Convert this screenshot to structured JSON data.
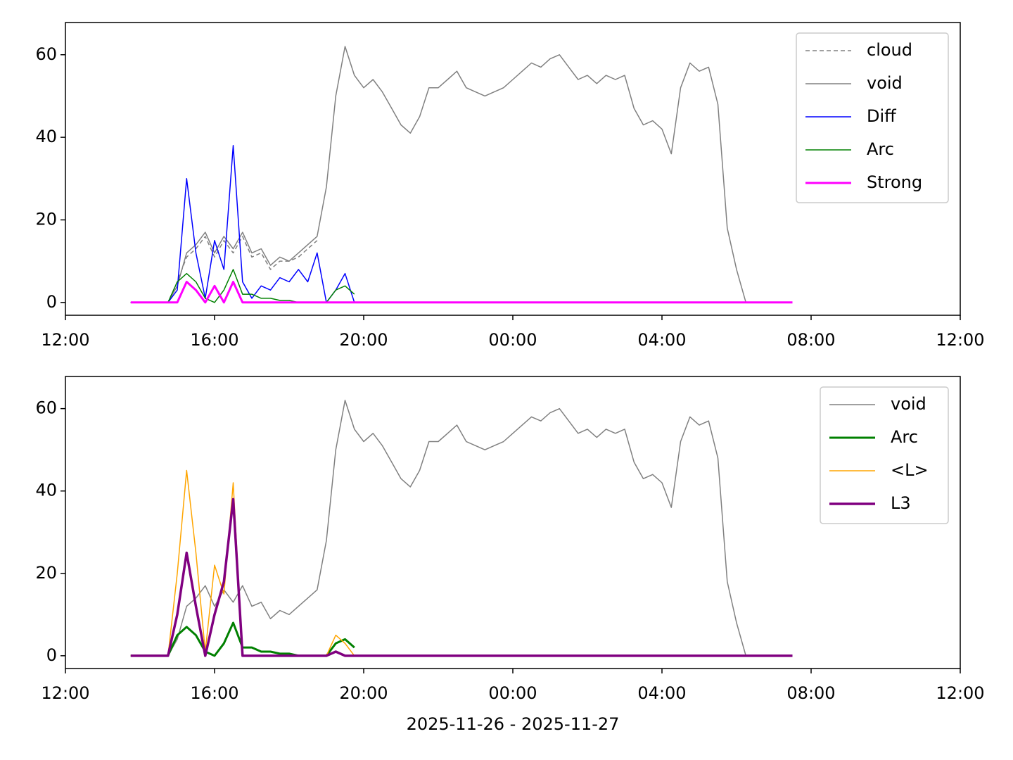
{
  "chart_data": [
    {
      "type": "line",
      "legend": "upper right",
      "xlim": [
        12,
        36
      ],
      "ylim": [
        -3.1,
        67.8
      ],
      "xticks": [
        {
          "value": 12,
          "label": "12:00"
        },
        {
          "value": 16,
          "label": "16:00"
        },
        {
          "value": 20,
          "label": "20:00"
        },
        {
          "value": 24,
          "label": "00:00"
        },
        {
          "value": 28,
          "label": "04:00"
        },
        {
          "value": 32,
          "label": "08:00"
        },
        {
          "value": 36,
          "label": "12:00"
        }
      ],
      "yticks": [
        0,
        20,
        40,
        60
      ],
      "x": [
        13.75,
        14,
        14.25,
        14.5,
        14.75,
        15,
        15.25,
        15.5,
        15.75,
        16,
        16.25,
        16.5,
        16.75,
        17,
        17.25,
        17.5,
        17.75,
        18,
        18.25,
        18.5,
        18.75,
        19,
        19.25,
        19.5,
        19.75,
        20,
        20.25,
        20.5,
        20.75,
        21,
        21.25,
        21.5,
        21.75,
        22,
        22.25,
        22.5,
        22.75,
        23,
        23.25,
        23.5,
        23.75,
        24,
        24.25,
        24.5,
        24.75,
        25,
        25.25,
        25.5,
        25.75,
        26,
        26.25,
        26.5,
        26.75,
        27,
        27.25,
        27.5,
        27.75,
        28,
        28.25,
        28.5,
        28.75,
        29,
        29.25,
        29.5,
        29.75,
        30,
        30.25,
        30.5,
        30.75,
        31,
        31.25,
        31.5
      ],
      "series": [
        {
          "name": "cloud",
          "color": "#808080",
          "linestyle": "dashed",
          "linewidth": 1.5,
          "values": [
            0,
            0,
            0,
            0,
            0,
            5,
            11,
            13,
            16,
            11,
            15,
            12,
            16,
            11,
            12,
            8,
            10,
            10,
            11,
            13,
            15,
            null,
            null,
            null,
            null,
            null,
            null,
            null,
            null,
            null,
            null,
            null,
            null,
            null,
            null,
            null,
            null,
            null,
            null,
            null,
            null,
            null,
            null,
            null,
            null,
            null,
            null,
            null,
            null,
            null,
            null,
            null,
            null,
            null,
            null,
            null,
            null,
            null,
            null,
            null,
            null,
            null,
            null,
            null,
            null,
            null,
            null,
            null,
            null,
            null,
            null,
            null
          ]
        },
        {
          "name": "void",
          "color": "#808080",
          "linewidth": 1.5,
          "values": [
            0,
            0,
            0,
            0,
            0,
            4,
            12,
            14,
            17,
            12,
            16,
            13,
            17,
            12,
            13,
            9,
            11,
            10,
            12,
            14,
            16,
            28,
            50,
            62,
            55,
            52,
            54,
            51,
            47,
            43,
            41,
            45,
            52,
            52,
            54,
            56,
            52,
            51,
            50,
            51,
            52,
            54,
            56,
            58,
            57,
            59,
            60,
            57,
            54,
            55,
            53,
            55,
            54,
            55,
            47,
            43,
            44,
            42,
            36,
            52,
            58,
            56,
            57,
            48,
            18,
            8,
            0,
            null,
            null,
            null,
            null,
            null
          ]
        },
        {
          "name": "Diff",
          "color": "#0000ff",
          "linewidth": 1.5,
          "values": [
            0,
            0,
            0,
            0,
            0,
            3,
            30,
            12,
            1,
            15,
            8,
            38,
            5,
            1,
            4,
            3,
            6,
            5,
            8,
            5,
            12,
            0,
            3,
            7,
            0,
            null,
            null,
            null,
            null,
            null,
            null,
            null,
            null,
            null,
            null,
            null,
            null,
            null,
            null,
            null,
            null,
            null,
            null,
            null,
            null,
            null,
            null,
            null,
            null,
            null,
            null,
            null,
            null,
            null,
            null,
            null,
            null,
            null,
            null,
            null,
            null,
            null,
            null,
            null,
            null,
            null,
            null,
            null,
            null,
            null,
            null,
            null
          ]
        },
        {
          "name": "Arc",
          "color": "#008000",
          "linewidth": 1.5,
          "values": [
            0,
            0,
            0,
            0,
            0,
            5,
            7,
            5,
            1,
            0,
            3,
            8,
            2,
            2,
            1,
            1,
            0.5,
            0.5,
            0,
            0,
            0,
            0,
            3,
            4,
            2,
            null,
            null,
            null,
            null,
            null,
            null,
            null,
            null,
            null,
            null,
            null,
            null,
            null,
            null,
            null,
            null,
            null,
            null,
            null,
            null,
            null,
            null,
            null,
            null,
            null,
            null,
            null,
            null,
            null,
            null,
            null,
            null,
            null,
            null,
            null,
            null,
            null,
            null,
            null,
            null,
            null,
            null,
            null,
            null,
            null,
            null,
            null
          ]
        },
        {
          "name": "Strong",
          "color": "#ff00ff",
          "linewidth": 3,
          "values": [
            0,
            0,
            0,
            0,
            0,
            0,
            5,
            3,
            0,
            4,
            0,
            5,
            0,
            0,
            0,
            0,
            0,
            0,
            0,
            0,
            0,
            0,
            0,
            0,
            0,
            0,
            0,
            0,
            0,
            0,
            0,
            0,
            0,
            0,
            0,
            0,
            0,
            0,
            0,
            0,
            0,
            0,
            0,
            0,
            0,
            0,
            0,
            0,
            0,
            0,
            0,
            0,
            0,
            0,
            0,
            0,
            0,
            0,
            0,
            0,
            0,
            0,
            0,
            0,
            0,
            0,
            0,
            0,
            0,
            0,
            0,
            0
          ]
        }
      ]
    },
    {
      "type": "line",
      "legend": "upper right",
      "xlabel": "2025-11-26 - 2025-11-27",
      "xlim": [
        12,
        36
      ],
      "ylim": [
        -3.1,
        67.8
      ],
      "xticks": [
        {
          "value": 12,
          "label": "12:00"
        },
        {
          "value": 16,
          "label": "16:00"
        },
        {
          "value": 20,
          "label": "20:00"
        },
        {
          "value": 24,
          "label": "00:00"
        },
        {
          "value": 28,
          "label": "04:00"
        },
        {
          "value": 32,
          "label": "08:00"
        },
        {
          "value": 36,
          "label": "12:00"
        }
      ],
      "yticks": [
        0,
        20,
        40,
        60
      ],
      "x": [
        13.75,
        14,
        14.25,
        14.5,
        14.75,
        15,
        15.25,
        15.5,
        15.75,
        16,
        16.25,
        16.5,
        16.75,
        17,
        17.25,
        17.5,
        17.75,
        18,
        18.25,
        18.5,
        18.75,
        19,
        19.25,
        19.5,
        19.75,
        20,
        20.25,
        20.5,
        20.75,
        21,
        21.25,
        21.5,
        21.75,
        22,
        22.25,
        22.5,
        22.75,
        23,
        23.25,
        23.5,
        23.75,
        24,
        24.25,
        24.5,
        24.75,
        25,
        25.25,
        25.5,
        25.75,
        26,
        26.25,
        26.5,
        26.75,
        27,
        27.25,
        27.5,
        27.75,
        28,
        28.25,
        28.5,
        28.75,
        29,
        29.25,
        29.5,
        29.75,
        30,
        30.25,
        30.5,
        30.75,
        31,
        31.25,
        31.5
      ],
      "series": [
        {
          "name": "void",
          "color": "#808080",
          "linewidth": 1.5,
          "values": [
            0,
            0,
            0,
            0,
            0,
            4,
            12,
            14,
            17,
            12,
            16,
            13,
            17,
            12,
            13,
            9,
            11,
            10,
            12,
            14,
            16,
            28,
            50,
            62,
            55,
            52,
            54,
            51,
            47,
            43,
            41,
            45,
            52,
            52,
            54,
            56,
            52,
            51,
            50,
            51,
            52,
            54,
            56,
            58,
            57,
            59,
            60,
            57,
            54,
            55,
            53,
            55,
            54,
            55,
            47,
            43,
            44,
            42,
            36,
            52,
            58,
            56,
            57,
            48,
            18,
            8,
            0,
            null,
            null,
            null,
            null,
            null
          ]
        },
        {
          "name": "Arc",
          "color": "#008000",
          "linewidth": 3,
          "values": [
            0,
            0,
            0,
            0,
            0,
            5,
            7,
            5,
            1,
            0,
            3,
            8,
            2,
            2,
            1,
            1,
            0.5,
            0.5,
            0,
            0,
            0,
            0,
            3,
            4,
            2,
            null,
            null,
            null,
            null,
            null,
            null,
            null,
            null,
            null,
            null,
            null,
            null,
            null,
            null,
            null,
            null,
            null,
            null,
            null,
            null,
            null,
            null,
            null,
            null,
            null,
            null,
            null,
            null,
            null,
            null,
            null,
            null,
            null,
            null,
            null,
            null,
            null,
            null,
            null,
            null,
            null,
            null,
            null,
            null,
            null,
            null,
            null
          ]
        },
        {
          "name": "<L>",
          "color": "#ffa500",
          "linewidth": 1.5,
          "values": [
            0,
            0,
            0,
            0,
            0,
            20,
            45,
            25,
            1,
            22,
            15,
            42,
            0,
            0,
            0,
            0,
            0,
            0,
            0,
            0,
            0,
            0,
            5,
            3,
            0,
            0,
            0,
            0,
            0,
            0,
            0,
            0,
            0,
            0,
            0,
            0,
            0,
            0,
            0,
            0,
            0,
            0,
            0,
            0,
            0,
            0,
            0,
            0,
            0,
            0,
            0,
            0,
            0,
            0,
            0,
            0,
            0,
            0,
            0,
            0,
            0,
            0,
            0,
            0,
            0,
            0,
            0,
            0,
            0,
            0,
            0,
            0
          ]
        },
        {
          "name": "L3",
          "color": "#800080",
          "linewidth": 3.5,
          "values": [
            0,
            0,
            0,
            0,
            0,
            10,
            25,
            12,
            0,
            10,
            18,
            38,
            0,
            0,
            0,
            0,
            0,
            0,
            0,
            0,
            0,
            0,
            1,
            0,
            0,
            0,
            0,
            0,
            0,
            0,
            0,
            0,
            0,
            0,
            0,
            0,
            0,
            0,
            0,
            0,
            0,
            0,
            0,
            0,
            0,
            0,
            0,
            0,
            0,
            0,
            0,
            0,
            0,
            0,
            0,
            0,
            0,
            0,
            0,
            0,
            0,
            0,
            0,
            0,
            0,
            0,
            0,
            0,
            0,
            0,
            0,
            0
          ]
        }
      ]
    }
  ]
}
